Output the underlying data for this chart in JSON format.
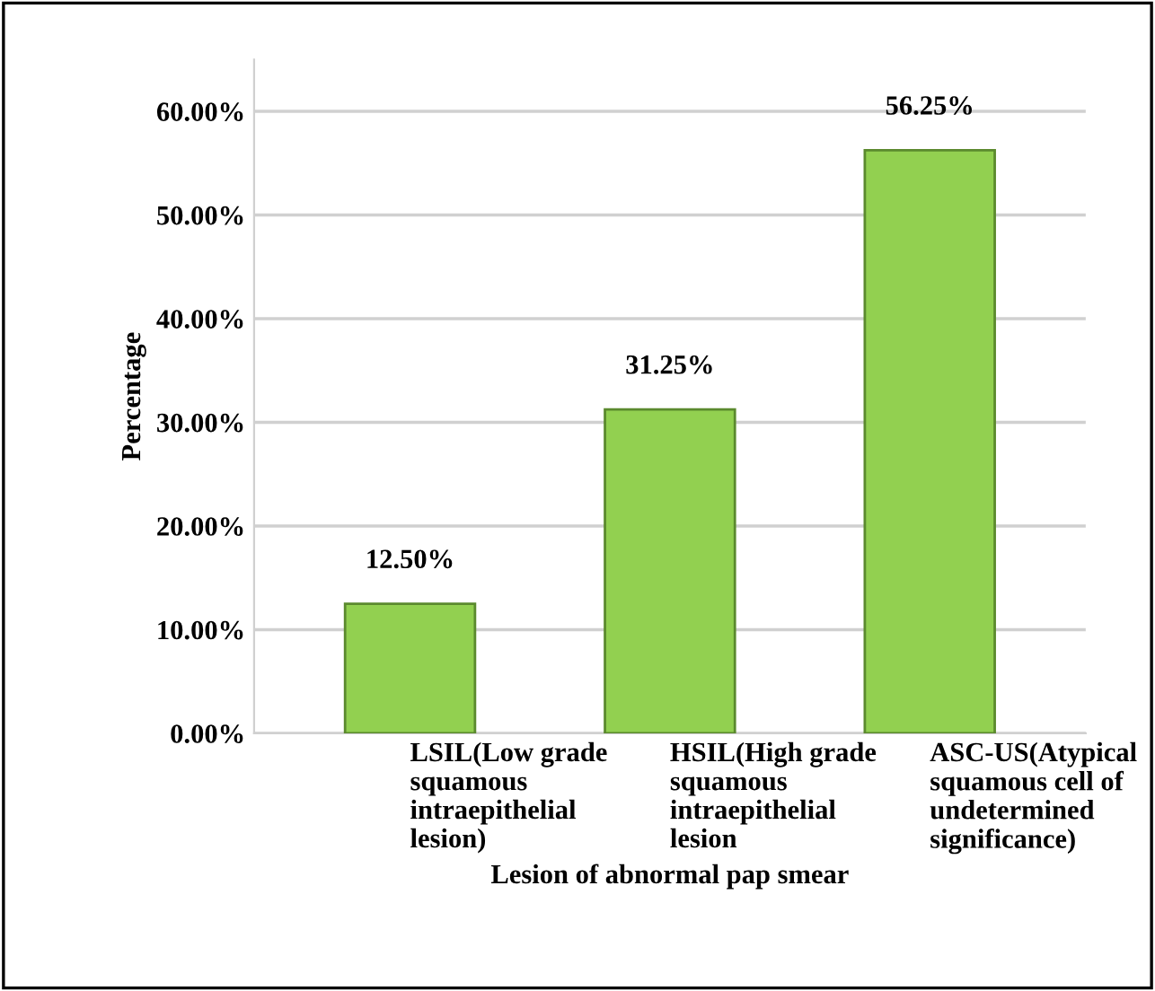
{
  "chart_data": {
    "type": "bar",
    "xlabel": "Lesion of abnormal pap smear",
    "ylabel": "Percentage",
    "categories": [
      "LSIL(Low grade\nsquamous\nintraepithelial\nlesion)",
      "HSIL(High grade\nsquamous\nintraepithelial\nlesion",
      "ASC-US(Atypical\nsquamous cell of\nundetermined\nsignificance)"
    ],
    "values": [
      12.5,
      31.25,
      56.25
    ],
    "value_labels": [
      "12.50%",
      "31.25%",
      "56.25%"
    ],
    "color": "#92d050",
    "ylim": [
      0,
      65
    ],
    "yticks": [
      {
        "value": 0,
        "label": "0.00%"
      },
      {
        "value": 10,
        "label": "10.00%"
      },
      {
        "value": 20,
        "label": "20.00%"
      },
      {
        "value": 30,
        "label": "30.00%"
      },
      {
        "value": 40,
        "label": "40.00%"
      },
      {
        "value": 50,
        "label": "50.00%"
      },
      {
        "value": 60,
        "label": "60.00%"
      }
    ],
    "grid": "y",
    "legend": false
  }
}
